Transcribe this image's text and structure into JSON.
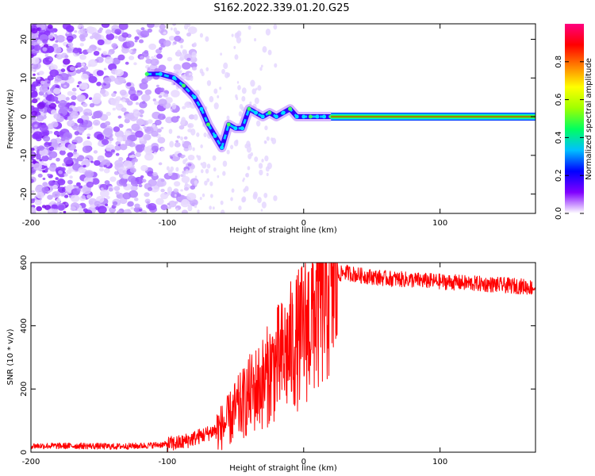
{
  "title": "S162.2022.339.01.20.G25",
  "chart_data": [
    {
      "type": "heatmap",
      "xlabel": "Height of straight line (km)",
      "ylabel": "Frequency (Hz)",
      "xlim": [
        -200,
        170
      ],
      "ylim": [
        -25,
        24
      ],
      "xticks": [
        -200,
        -100,
        0,
        100
      ],
      "yticks": [
        -20,
        -10,
        0,
        10,
        20
      ],
      "colorbar": {
        "label": "Normalized spectral amplitude",
        "range": [
          0,
          1
        ],
        "ticks": [
          "0.0",
          "0.2",
          "0.4",
          "0.6",
          "0.8"
        ],
        "colormap": [
          "#ffffff",
          "#8000ff",
          "#0000ff",
          "#00c0ff",
          "#00ff60",
          "#a0ff00",
          "#ffff00",
          "#ff8000",
          "#ff0000",
          "#ff0080"
        ]
      },
      "ridge": {
        "x": [
          -115,
          -105,
          -95,
          -88,
          -80,
          -75,
          -70,
          -65,
          -60,
          -55,
          -50,
          -45,
          -40,
          -35,
          -30,
          -25,
          -20,
          -15,
          -10,
          -5,
          0,
          5,
          10,
          15,
          20,
          60,
          100,
          140,
          170
        ],
        "y": [
          11,
          11,
          10,
          8,
          5,
          2,
          -2,
          -5,
          -8,
          -2,
          -3,
          -3,
          2,
          1,
          0,
          1,
          0,
          1,
          2,
          0,
          0,
          0,
          0,
          0,
          0,
          0,
          0,
          0,
          0
        ]
      },
      "steady_line": {
        "from_x": 20,
        "to_x": 170,
        "y": 0
      }
    },
    {
      "type": "line",
      "xlabel": "Height of straight line (km)",
      "ylabel": "SNR (10 * v/v)",
      "xlim": [
        -200,
        170
      ],
      "ylim": [
        0,
        600
      ],
      "xticks": [
        -200,
        -100,
        0,
        100
      ],
      "yticks": [
        0,
        200,
        400,
        600
      ],
      "color": "#ff0000",
      "series": [
        {
          "x": [
            -200,
            -180,
            -160,
            -140,
            -120,
            -100,
            -90,
            -80,
            -70,
            -60,
            -55,
            -50,
            -45,
            -40,
            -35,
            -30,
            -25,
            -20,
            -15,
            -10,
            -5,
            0,
            5,
            10,
            15,
            20,
            25,
            30,
            40,
            50,
            60,
            80,
            100,
            120,
            140,
            160,
            170
          ],
          "y": [
            20,
            20,
            20,
            18,
            20,
            25,
            30,
            45,
            60,
            80,
            100,
            130,
            150,
            180,
            200,
            220,
            250,
            280,
            300,
            330,
            350,
            380,
            420,
            460,
            500,
            540,
            560,
            570,
            560,
            555,
            550,
            545,
            540,
            535,
            530,
            525,
            520
          ]
        }
      ]
    }
  ]
}
